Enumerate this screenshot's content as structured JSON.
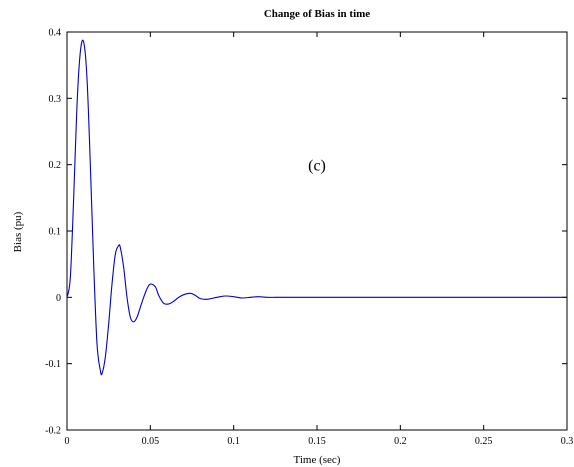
{
  "chart_data": {
    "type": "line",
    "title": "Change of Bias in time",
    "xlabel": "Time (sec)",
    "ylabel": "Bias (pu)",
    "xlim": [
      0,
      0.3
    ],
    "ylim": [
      -0.2,
      0.4
    ],
    "xticks": [
      0,
      0.05,
      0.1,
      0.15,
      0.2,
      0.25,
      0.3
    ],
    "xtick_labels": [
      "0",
      "0.05",
      "0.1",
      "0.15",
      "0.2",
      "0.25",
      "0.3"
    ],
    "yticks": [
      -0.2,
      -0.1,
      0,
      0.1,
      0.2,
      0.3,
      0.4
    ],
    "ytick_labels": [
      "-0.2",
      "-0.1",
      "0",
      "0.1",
      "0.2",
      "0.3",
      "0.4"
    ],
    "grid": false,
    "annotation": {
      "text": "(c)",
      "x": 0.15,
      "y": 0.2
    },
    "series": [
      {
        "color": "#0000cc",
        "x": [
          0,
          0.002,
          0.004,
          0.006,
          0.008,
          0.01,
          0.012,
          0.014,
          0.016,
          0.018,
          0.02,
          0.021,
          0.023,
          0.025,
          0.027,
          0.029,
          0.031,
          0.032,
          0.034,
          0.036,
          0.038,
          0.04,
          0.042,
          0.044,
          0.046,
          0.048,
          0.05,
          0.053,
          0.055,
          0.058,
          0.061,
          0.064,
          0.067,
          0.07,
          0.074,
          0.077,
          0.08,
          0.084,
          0.088,
          0.092,
          0.095,
          0.1,
          0.105,
          0.11,
          0.115,
          0.12,
          0.13,
          0.15,
          0.2,
          0.25,
          0.3
        ],
        "y": [
          0,
          0.03,
          0.15,
          0.29,
          0.37,
          0.385,
          0.33,
          0.2,
          0.05,
          -0.07,
          -0.11,
          -0.115,
          -0.09,
          -0.04,
          0.02,
          0.065,
          0.078,
          0.075,
          0.045,
          0.0,
          -0.03,
          -0.037,
          -0.03,
          -0.015,
          0.0,
          0.013,
          0.02,
          0.016,
          0.003,
          -0.009,
          -0.01,
          -0.006,
          0.0,
          0.004,
          0.006,
          0.003,
          -0.002,
          -0.003,
          -0.001,
          0.001,
          0.002,
          0.001,
          -0.001,
          0.0,
          0.001,
          0.0,
          0.0,
          0.0,
          0.0,
          0.0,
          0.0
        ]
      }
    ]
  }
}
